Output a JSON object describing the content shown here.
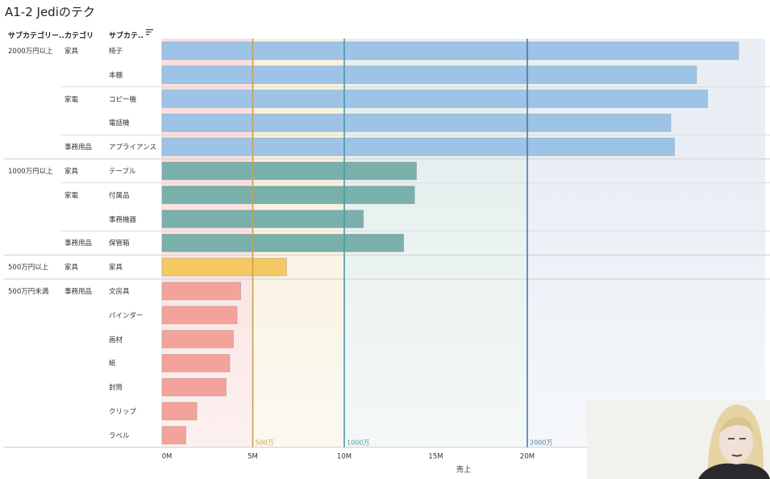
{
  "title": "A1-2 Jediのテク",
  "headers": {
    "col1": "サブカテゴリー..",
    "col2": "カテゴリ",
    "col3": "サブカテ.."
  },
  "icons": {
    "sort": "sort-descending-icon"
  },
  "x_axis_label": "売上",
  "chart_data": {
    "type": "bar",
    "orientation": "horizontal",
    "xlabel": "売上",
    "xlim": [
      0,
      33000000
    ],
    "x_ticks": [
      "0M",
      "5M",
      "10M",
      "15M",
      "20M"
    ],
    "x_tick_values": [
      0,
      5000000,
      10000000,
      15000000,
      20000000
    ],
    "groups": [
      {
        "label": "2000万円以上",
        "color": "#9dc3e6"
      },
      {
        "label": "1000万円以上",
        "color": "#79b0ab"
      },
      {
        "label": "500万円以上",
        "color": "#f4c862"
      },
      {
        "label": "500万円未満",
        "color": "#f4a39c"
      }
    ],
    "rows": [
      {
        "group": "2000万円以上",
        "category": "家具",
        "subcategory": "椅子",
        "value": 31500000
      },
      {
        "group": "2000万円以上",
        "category": "",
        "subcategory": "本棚",
        "value": 29200000
      },
      {
        "group": "2000万円以上",
        "category": "家電",
        "subcategory": "コピー機",
        "value": 29800000
      },
      {
        "group": "2000万円以上",
        "category": "",
        "subcategory": "電話機",
        "value": 27800000
      },
      {
        "group": "2000万円以上",
        "category": "事務用品",
        "subcategory": "アプライアンス",
        "value": 28000000
      },
      {
        "group": "1000万円以上",
        "category": "家具",
        "subcategory": "テーブル",
        "value": 13900000
      },
      {
        "group": "1000万円以上",
        "category": "家電",
        "subcategory": "付属品",
        "value": 13800000
      },
      {
        "group": "1000万円以上",
        "category": "",
        "subcategory": "事務機器",
        "value": 11000000
      },
      {
        "group": "1000万円以上",
        "category": "事務用品",
        "subcategory": "保管箱",
        "value": 13200000
      },
      {
        "group": "500万円以上",
        "category": "家具",
        "subcategory": "家具",
        "value": 6800000
      },
      {
        "group": "500万円未満",
        "category": "事務用品",
        "subcategory": "文房具",
        "value": 4300000
      },
      {
        "group": "500万円未満",
        "category": "",
        "subcategory": "バインダー",
        "value": 4100000
      },
      {
        "group": "500万円未満",
        "category": "",
        "subcategory": "画材",
        "value": 3900000
      },
      {
        "group": "500万円未満",
        "category": "",
        "subcategory": "紙",
        "value": 3700000
      },
      {
        "group": "500万円未満",
        "category": "",
        "subcategory": "封筒",
        "value": 3500000
      },
      {
        "group": "500万円未満",
        "category": "",
        "subcategory": "クリップ",
        "value": 1900000
      },
      {
        "group": "500万円未満",
        "category": "",
        "subcategory": "ラベル",
        "value": 1300000
      }
    ],
    "reference_lines": [
      {
        "label": "500万",
        "value": 5000000,
        "color": "#c9a24a"
      },
      {
        "label": "1000万",
        "value": 10000000,
        "color": "#4a9aa3"
      },
      {
        "label": "2000万",
        "value": 20000000,
        "color": "#4a78a8"
      }
    ],
    "bands": [
      {
        "from": 0,
        "to": 5000000,
        "color": "#f7d4d2"
      },
      {
        "from": 5000000,
        "to": 10000000,
        "color": "#f6ecd3"
      },
      {
        "from": 10000000,
        "to": 20000000,
        "color": "#dde9ea"
      },
      {
        "from": 20000000,
        "to": 33000000,
        "color": "#e2e8f2"
      }
    ],
    "grid": false
  }
}
